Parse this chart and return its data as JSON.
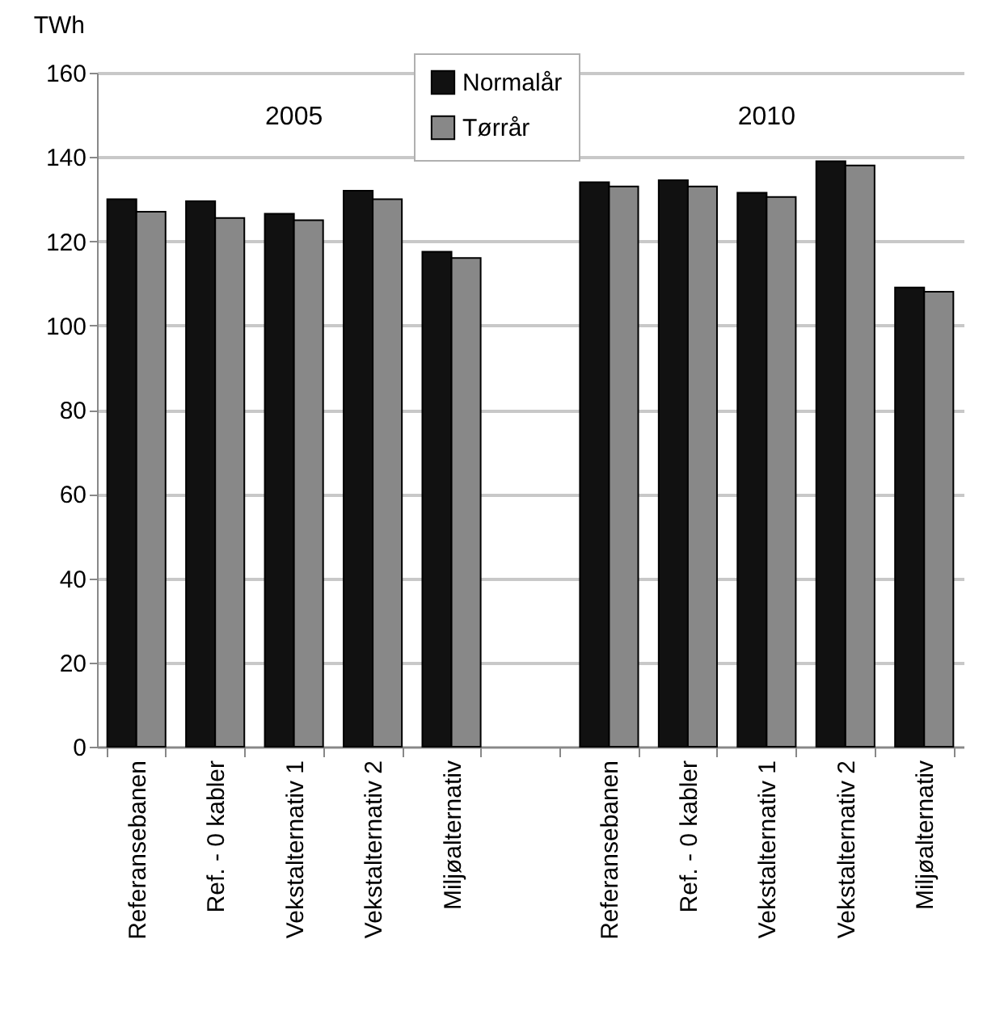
{
  "chart_data": {
    "type": "bar",
    "ylabel": "TWh",
    "categories": [
      "Referansebanen",
      "Ref. - 0 kabler",
      "Vekstalternativ 1",
      "Vekstalternativ 2",
      "Miljøalternativ",
      null,
      "Referansebanen",
      "Ref. - 0 kabler",
      "Vekstalternativ 1",
      "Vekstalternativ 2",
      "Miljøalternativ"
    ],
    "series": [
      {
        "name": "Normalår",
        "color": "#111111",
        "values": [
          130,
          129.5,
          126.5,
          132,
          117.5,
          null,
          134,
          134.5,
          131.5,
          139,
          109
        ]
      },
      {
        "name": "Tørrår",
        "color": "#888888",
        "values": [
          127,
          125.5,
          125,
          130,
          116,
          null,
          133,
          133,
          130.5,
          138,
          108
        ]
      }
    ],
    "annotations": [
      "2005",
      "2010"
    ],
    "ylim": [
      0,
      160
    ],
    "yticks": [
      0,
      20,
      40,
      60,
      80,
      100,
      120,
      140,
      160
    ],
    "grid": "y",
    "legend": "top"
  }
}
